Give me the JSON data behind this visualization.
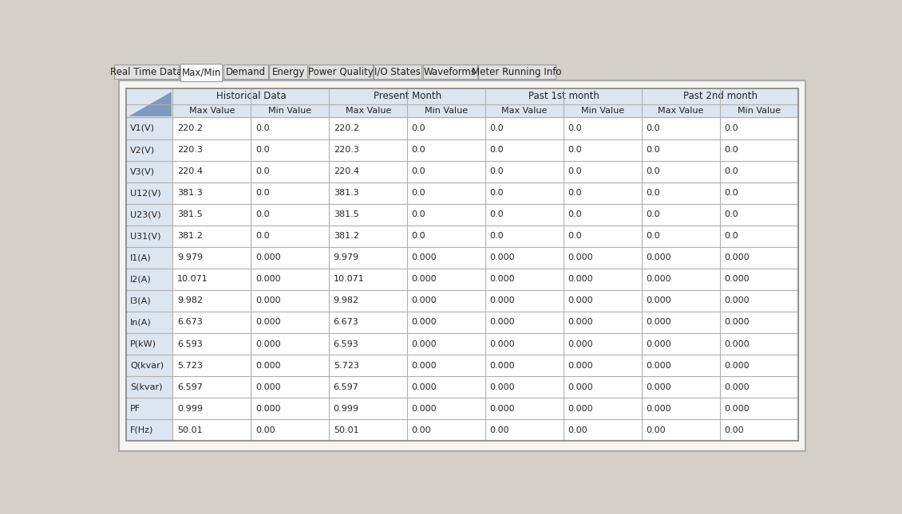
{
  "tabs": [
    "Real Time Data",
    "Max/Min",
    "Demand",
    "Energy",
    "Power Quality",
    "I/O States",
    "Waveforms",
    "Meter Running Info"
  ],
  "active_tab_idx": 1,
  "tab_w_list": [
    105,
    68,
    72,
    62,
    103,
    77,
    88,
    125
  ],
  "tab_bg": "#e0e0e0",
  "active_tab_bg": "#ffffff",
  "tab_border": "#999999",
  "table_bg": "#ffffff",
  "header_bg": "#c5d4e8",
  "row_label_bg": "#dce6f1",
  "col_groups": [
    "Historical Data",
    "Present Month",
    "Past 1st month",
    "Past 2nd month"
  ],
  "col_subheaders": [
    "Max Value",
    "Min Value",
    "Max Value",
    "Min Value",
    "Max Value",
    "Min Value",
    "Max Value",
    "Min Value"
  ],
  "row_labels": [
    "V1(V)",
    "V2(V)",
    "V3(V)",
    "U12(V)",
    "U23(V)",
    "U31(V)",
    "I1(A)",
    "I2(A)",
    "I3(A)",
    "In(A)",
    "P(kW)",
    "Q(kvar)",
    "S(kvar)",
    "PF",
    "F(Hz)"
  ],
  "data": [
    [
      "220.2",
      "0.0",
      "220.2",
      "0.0",
      "0.0",
      "0.0",
      "0.0",
      "0.0"
    ],
    [
      "220.3",
      "0.0",
      "220.3",
      "0.0",
      "0.0",
      "0.0",
      "0.0",
      "0.0"
    ],
    [
      "220.4",
      "0.0",
      "220.4",
      "0.0",
      "0.0",
      "0.0",
      "0.0",
      "0.0"
    ],
    [
      "381.3",
      "0.0",
      "381.3",
      "0.0",
      "0.0",
      "0.0",
      "0.0",
      "0.0"
    ],
    [
      "381.5",
      "0.0",
      "381.5",
      "0.0",
      "0.0",
      "0.0",
      "0.0",
      "0.0"
    ],
    [
      "381.2",
      "0.0",
      "381.2",
      "0.0",
      "0.0",
      "0.0",
      "0.0",
      "0.0"
    ],
    [
      "9.979",
      "0.000",
      "9.979",
      "0.000",
      "0.000",
      "0.000",
      "0.000",
      "0.000"
    ],
    [
      "10.071",
      "0.000",
      "10.071",
      "0.000",
      "0.000",
      "0.000",
      "0.000",
      "0.000"
    ],
    [
      "9.982",
      "0.000",
      "9.982",
      "0.000",
      "0.000",
      "0.000",
      "0.000",
      "0.000"
    ],
    [
      "6.673",
      "0.000",
      "6.673",
      "0.000",
      "0.000",
      "0.000",
      "0.000",
      "0.000"
    ],
    [
      "6.593",
      "0.000",
      "6.593",
      "0.000",
      "0.000",
      "0.000",
      "0.000",
      "0.000"
    ],
    [
      "5.723",
      "0.000",
      "5.723",
      "0.000",
      "0.000",
      "0.000",
      "0.000",
      "0.000"
    ],
    [
      "6.597",
      "0.000",
      "6.597",
      "0.000",
      "0.000",
      "0.000",
      "0.000",
      "0.000"
    ],
    [
      "0.999",
      "0.000",
      "0.999",
      "0.000",
      "0.000",
      "0.000",
      "0.000",
      "0.000"
    ],
    [
      "50.01",
      "0.00",
      "50.01",
      "0.00",
      "0.00",
      "0.00",
      "0.00",
      "0.00"
    ]
  ],
  "font_size_tab": 8.5,
  "font_size_header": 8.5,
  "font_size_subheader": 8.0,
  "font_size_data": 8.0,
  "outer_bg": "#d4d0c8",
  "content_bg": "#f0ece0",
  "line_color": "#b0b0b0",
  "text_color": "#222222"
}
